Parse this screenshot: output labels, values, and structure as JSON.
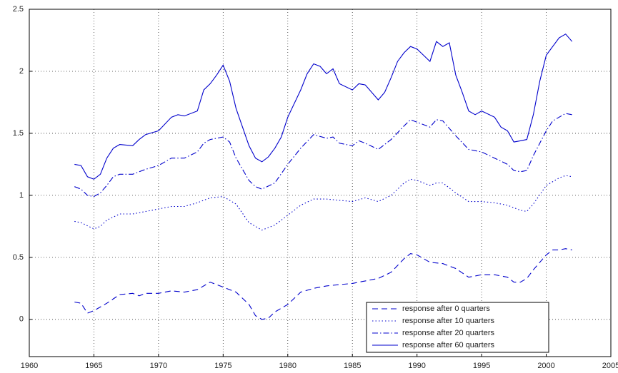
{
  "chart_data": {
    "type": "line",
    "xlim": [
      1960,
      2005
    ],
    "ylim": [
      -0.3,
      2.5
    ],
    "xticks": [
      1960,
      1965,
      1970,
      1975,
      1980,
      1985,
      1990,
      1995,
      2000,
      2005
    ],
    "yticks": [
      0,
      0.5,
      1,
      1.5,
      2,
      2.5
    ],
    "grid": true,
    "legend_position": "lower right",
    "series": [
      {
        "name": "response after 0 quarters",
        "color": "#0000cc",
        "style": "dashed",
        "x": [
          1963.5,
          1964,
          1964.5,
          1965,
          1966,
          1967,
          1968,
          1968.5,
          1969,
          1970,
          1971,
          1972,
          1973,
          1974,
          1975,
          1976,
          1977,
          1977.5,
          1978,
          1978.5,
          1979,
          1980,
          1981,
          1982,
          1983,
          1984,
          1985,
          1986,
          1987,
          1988,
          1989,
          1989.5,
          1990,
          1991,
          1992,
          1993,
          1994,
          1995,
          1996,
          1997,
          1997.5,
          1998,
          1998.5,
          1999,
          2000,
          2000.5,
          2001,
          2001.5,
          2002
        ],
        "values": [
          0.14,
          0.13,
          0.05,
          0.07,
          0.13,
          0.2,
          0.21,
          0.19,
          0.21,
          0.21,
          0.23,
          0.22,
          0.24,
          0.3,
          0.26,
          0.22,
          0.12,
          0.03,
          0.0,
          0.01,
          0.06,
          0.12,
          0.22,
          0.25,
          0.27,
          0.28,
          0.29,
          0.31,
          0.33,
          0.38,
          0.49,
          0.53,
          0.52,
          0.46,
          0.45,
          0.41,
          0.34,
          0.36,
          0.36,
          0.34,
          0.3,
          0.3,
          0.33,
          0.4,
          0.52,
          0.56,
          0.56,
          0.57,
          0.56
        ]
      },
      {
        "name": "response after 10 quarters",
        "color": "#0000cc",
        "style": "dotted",
        "x": [
          1963.5,
          1964,
          1965,
          1965.5,
          1966,
          1967,
          1968,
          1969,
          1970,
          1971,
          1972,
          1973,
          1974,
          1975,
          1976,
          1977,
          1978,
          1979,
          1980,
          1981,
          1982,
          1983,
          1984,
          1985,
          1986,
          1987,
          1988,
          1989,
          1989.5,
          1990,
          1991,
          1991.5,
          1992,
          1993,
          1994,
          1995,
          1996,
          1997,
          1998,
          1998.5,
          1999,
          2000,
          2001,
          2001.5,
          2002
        ],
        "values": [
          0.79,
          0.78,
          0.73,
          0.75,
          0.8,
          0.85,
          0.85,
          0.87,
          0.89,
          0.91,
          0.91,
          0.94,
          0.98,
          0.99,
          0.93,
          0.78,
          0.72,
          0.76,
          0.84,
          0.92,
          0.97,
          0.97,
          0.96,
          0.95,
          0.98,
          0.95,
          1.0,
          1.1,
          1.13,
          1.12,
          1.08,
          1.1,
          1.1,
          1.02,
          0.95,
          0.95,
          0.94,
          0.92,
          0.88,
          0.87,
          0.93,
          1.08,
          1.14,
          1.16,
          1.15
        ]
      },
      {
        "name": "response after 20 quarters",
        "color": "#0000cc",
        "style": "dashdot",
        "x": [
          1963.5,
          1964,
          1964.5,
          1965,
          1965.5,
          1966,
          1966.5,
          1967,
          1968,
          1969,
          1970,
          1971,
          1972,
          1973,
          1973.5,
          1974,
          1975,
          1975.5,
          1976,
          1977,
          1977.5,
          1978,
          1979,
          1980,
          1981,
          1982,
          1983,
          1983.5,
          1984,
          1985,
          1985.5,
          1986,
          1987,
          1988,
          1989,
          1989.5,
          1990,
          1991,
          1991.5,
          1992,
          1993,
          1994,
          1995,
          1996,
          1997,
          1997.5,
          1998,
          1998.5,
          1999,
          2000,
          2000.5,
          2001,
          2001.5,
          2002
        ],
        "values": [
          1.07,
          1.05,
          1.0,
          0.99,
          1.02,
          1.08,
          1.15,
          1.17,
          1.17,
          1.21,
          1.24,
          1.3,
          1.3,
          1.35,
          1.42,
          1.45,
          1.47,
          1.43,
          1.3,
          1.12,
          1.07,
          1.05,
          1.1,
          1.25,
          1.38,
          1.49,
          1.46,
          1.47,
          1.42,
          1.4,
          1.44,
          1.42,
          1.37,
          1.45,
          1.56,
          1.61,
          1.59,
          1.55,
          1.61,
          1.6,
          1.48,
          1.37,
          1.35,
          1.3,
          1.25,
          1.2,
          1.19,
          1.2,
          1.32,
          1.52,
          1.6,
          1.63,
          1.66,
          1.65
        ]
      },
      {
        "name": "response after 60 quarters",
        "color": "#0000cc",
        "style": "solid",
        "x": [
          1963.5,
          1964,
          1964.5,
          1965,
          1965.5,
          1966,
          1966.5,
          1967,
          1968,
          1968.5,
          1969,
          1970,
          1971,
          1971.5,
          1972,
          1973,
          1973.5,
          1974,
          1974.5,
          1975,
          1975.5,
          1976,
          1977,
          1977.5,
          1978,
          1978.5,
          1979,
          1979.5,
          1980,
          1981,
          1981.5,
          1982,
          1982.5,
          1983,
          1983.5,
          1984,
          1985,
          1985.5,
          1986,
          1987,
          1987.5,
          1988,
          1988.5,
          1989,
          1989.5,
          1990,
          1990.5,
          1991,
          1991.5,
          1992,
          1992.5,
          1993,
          1993.5,
          1994,
          1994.5,
          1995,
          1996,
          1996.5,
          1997,
          1997.5,
          1998,
          1998.5,
          1999,
          1999.5,
          2000,
          2000.5,
          2001,
          2001.5,
          2002
        ],
        "values": [
          1.25,
          1.24,
          1.15,
          1.13,
          1.17,
          1.3,
          1.38,
          1.41,
          1.4,
          1.45,
          1.49,
          1.52,
          1.63,
          1.65,
          1.64,
          1.68,
          1.85,
          1.9,
          1.97,
          2.05,
          1.92,
          1.7,
          1.4,
          1.3,
          1.27,
          1.31,
          1.38,
          1.47,
          1.63,
          1.85,
          1.98,
          2.06,
          2.04,
          1.98,
          2.02,
          1.9,
          1.85,
          1.9,
          1.89,
          1.77,
          1.83,
          1.95,
          2.08,
          2.15,
          2.2,
          2.18,
          2.13,
          2.08,
          2.24,
          2.2,
          2.23,
          1.97,
          1.83,
          1.68,
          1.65,
          1.68,
          1.63,
          1.55,
          1.52,
          1.43,
          1.44,
          1.45,
          1.65,
          1.92,
          2.13,
          2.2,
          2.27,
          2.3,
          2.24
        ]
      }
    ]
  }
}
